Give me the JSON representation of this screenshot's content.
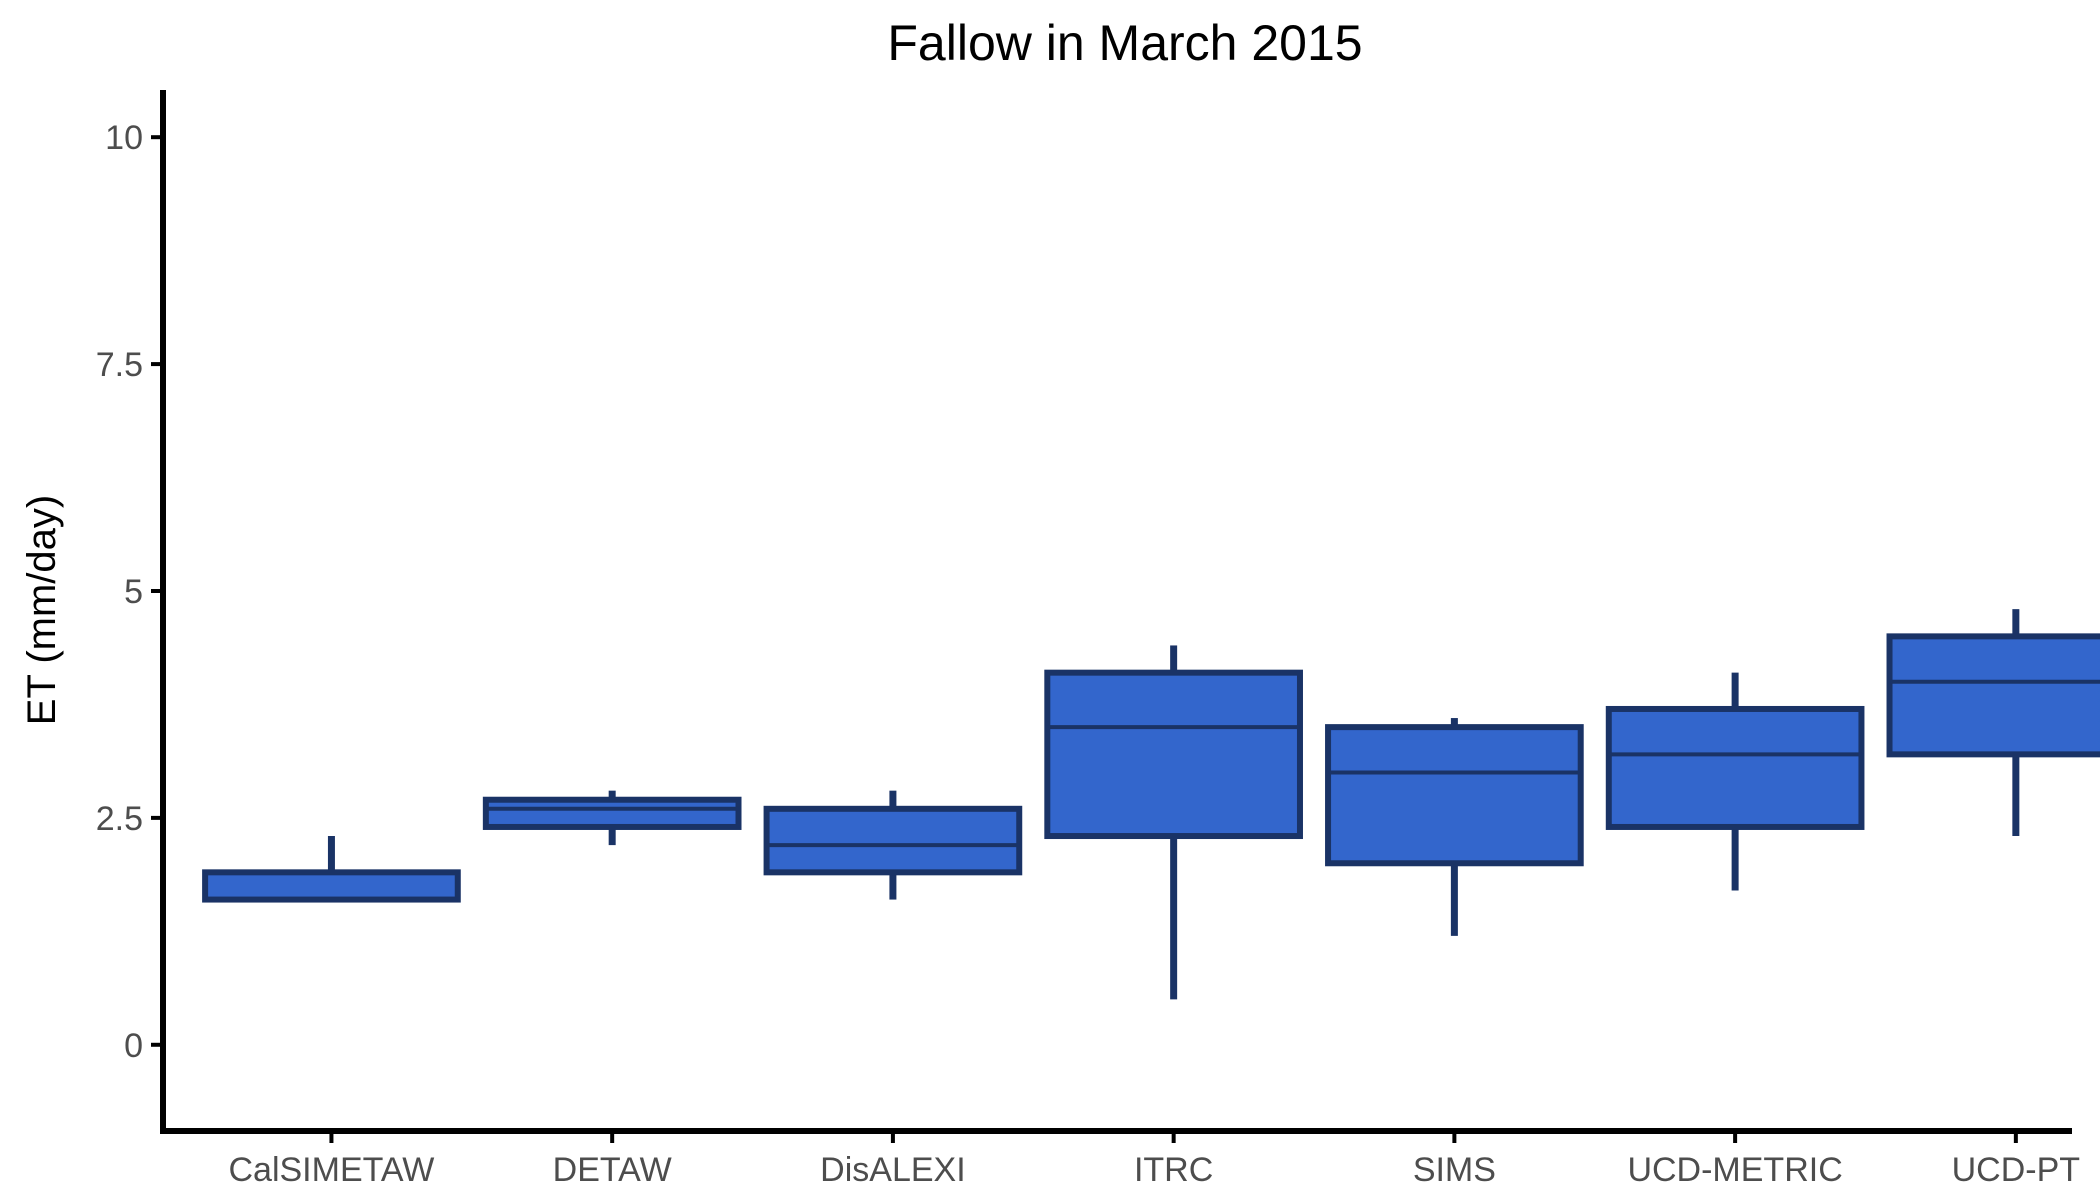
{
  "chart_data": {
    "type": "box",
    "title": "Fallow in March 2015",
    "xlabel": "",
    "ylabel": "ET (mm/day)",
    "ylim": [
      -0.95,
      10.52
    ],
    "yticks": [
      0,
      2.5,
      5,
      7.5,
      10
    ],
    "ytick_labels": [
      "0",
      "2.5",
      "5",
      "7.5",
      "10"
    ],
    "grid": false,
    "legend": "none",
    "categories": [
      "CalSIMETAW",
      "DETAW",
      "DisALEXI",
      "ITRC",
      "SIMS",
      "UCD-METRIC",
      "UCD-PT"
    ],
    "boxes": [
      {
        "category": "CalSIMETAW",
        "whisker_low": 1.6,
        "q1": 1.6,
        "median": 1.6,
        "q3": 1.9,
        "whisker_high": 2.3
      },
      {
        "category": "DETAW",
        "whisker_low": 2.2,
        "q1": 2.4,
        "median": 2.6,
        "q3": 2.7,
        "whisker_high": 2.8
      },
      {
        "category": "DisALEXI",
        "whisker_low": 1.6,
        "q1": 1.9,
        "median": 2.2,
        "q3": 2.6,
        "whisker_high": 2.8
      },
      {
        "category": "ITRC",
        "whisker_low": 0.5,
        "q1": 2.3,
        "median": 3.5,
        "q3": 4.1,
        "whisker_high": 4.4
      },
      {
        "category": "SIMS",
        "whisker_low": 1.2,
        "q1": 2.0,
        "median": 3.0,
        "q3": 3.5,
        "whisker_high": 3.6
      },
      {
        "category": "UCD-METRIC",
        "whisker_low": 1.7,
        "q1": 2.4,
        "median": 3.2,
        "q3": 3.7,
        "whisker_high": 4.1
      },
      {
        "category": "UCD-PT",
        "whisker_low": 2.3,
        "q1": 3.2,
        "median": 4.0,
        "q3": 4.5,
        "whisker_high": 4.8
      }
    ],
    "colors": {
      "box_fill": "#3366cc",
      "box_outline": "#1a3366",
      "axis": "#000000",
      "tick_text": "#4d4d4d"
    }
  }
}
